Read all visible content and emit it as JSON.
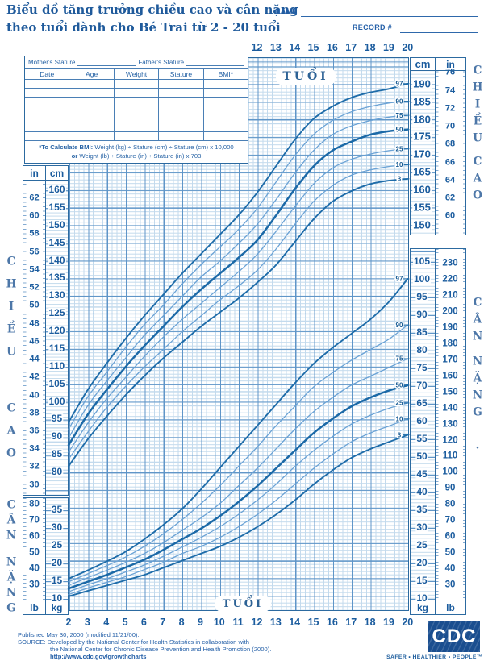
{
  "header": {
    "title_line1": "Biểu đồ tăng trưởng chiều cao và cân nặng",
    "title_line2": "theo tuổi dành cho Bé Trai từ 2 - 20 tuổi",
    "name_label": "NAME",
    "record_label": "RECORD #"
  },
  "table": {
    "mother_label": "Mother's Stature",
    "father_label": "Father's Stature",
    "columns": [
      "Date",
      "Age",
      "Weight",
      "Stature",
      "BMI*"
    ],
    "empty_rows": 7,
    "bmi_note1_bold": "*To Calculate BMI:",
    "bmi_note1_rest": " Weight (kg) ÷ Stature (cm) ÷ Stature (cm) x 10,000",
    "bmi_note2_bold": "or",
    "bmi_note2_rest": " Weight (lb) ÷ Stature (in) ÷ Stature (in) x 703"
  },
  "units": {
    "in": "in",
    "cm": "cm",
    "lb": "lb",
    "kg": "kg"
  },
  "chart_labels": {
    "age_axis_title_top": "TUỔI",
    "age_axis_title_bottom": "TUỔI",
    "stature_left": "CHIỀU CAO",
    "stature_right": "CHIỀU CAO",
    "weight_left": "CÂN NẶNG",
    "weight_right": "CÂN NẶNG",
    "weight_right_period": "."
  },
  "footer": {
    "published": "Published May 30, 2000 (modified 11/21/00).",
    "source_line1": "SOURCE: Developed by the National Center for Health Statistics in collaboration with",
    "source_line2": "the National Center for Chronic Disease Prevention and Health Promotion (2000).",
    "url": "http://www.cdc.gov/growthcharts",
    "cdc_logo": "CDC",
    "tagline": "SAFER • HEALTHIER • PEOPLE™"
  },
  "chart_data": {
    "type": "line",
    "title": "Biểu đồ tăng trưởng chiều cao và cân nặng theo tuổi dành cho Bé Trai từ 2 - 20 tuổi",
    "xlabel": "TUỔI (age, years)",
    "ylabel_stature": "CHIỀU CAO (stature, cm / in)",
    "ylabel_weight": "CÂN NẶNG (weight, kg / lb)",
    "x_range": [
      2,
      20
    ],
    "stature_cm_range": [
      80,
      190
    ],
    "weight_kg_range": [
      10,
      105
    ],
    "percentiles": [
      "97",
      "90",
      "75",
      "50",
      "25",
      "10",
      "3"
    ],
    "ages": [
      2,
      3,
      4,
      5,
      6,
      7,
      8,
      9,
      10,
      11,
      12,
      13,
      14,
      15,
      16,
      17,
      18,
      19,
      20
    ],
    "stature_cm": {
      "series": [
        {
          "name": "97",
          "values": [
            94,
            103,
            110.5,
            117.5,
            124,
            130,
            136,
            141.5,
            147,
            152.5,
            159,
            166.5,
            174,
            180,
            183.5,
            186,
            187.5,
            188.5,
            190
          ]
        },
        {
          "name": "90",
          "values": [
            92,
            101,
            108,
            115,
            121.5,
            127,
            133,
            138.5,
            143.5,
            148.5,
            154.5,
            162,
            169.5,
            175.5,
            179.5,
            182,
            183.5,
            184.5,
            185
          ]
        },
        {
          "name": "75",
          "values": [
            89.5,
            98.5,
            105.5,
            112,
            118.5,
            124,
            129.5,
            135,
            139.5,
            144.5,
            150,
            157,
            164.5,
            171,
            175.5,
            178,
            179.5,
            180.5,
            181
          ]
        },
        {
          "name": "50",
          "values": [
            87.5,
            96,
            103,
            109.5,
            115.5,
            121,
            126.5,
            131.5,
            136,
            140.5,
            145.5,
            152.5,
            160,
            166.5,
            171,
            173.5,
            175.5,
            176.5,
            177
          ]
        },
        {
          "name": "25",
          "values": [
            85.5,
            93.5,
            100.5,
            106.5,
            112.5,
            118,
            123,
            127.5,
            132,
            136.5,
            141.5,
            148,
            155,
            161.5,
            166,
            168.5,
            170,
            171,
            171.5
          ]
        },
        {
          "name": "10",
          "values": [
            83.5,
            91,
            98,
            104,
            109.5,
            114.5,
            119.5,
            124,
            128.5,
            132.5,
            137,
            143,
            150,
            156.5,
            161,
            164,
            165.5,
            166.5,
            167
          ]
        },
        {
          "name": "3",
          "values": [
            81.5,
            89,
            95.5,
            101.5,
            107,
            112,
            116.5,
            121,
            125,
            129,
            133.5,
            138.5,
            145,
            151.5,
            156.5,
            159.5,
            161.5,
            162.5,
            163
          ]
        }
      ]
    },
    "weight_kg": {
      "series": [
        {
          "name": "97",
          "values": [
            15.5,
            17.8,
            20.3,
            23,
            26.5,
            30.5,
            35,
            40.5,
            46.5,
            52.5,
            58.5,
            64.5,
            70.5,
            76,
            80.5,
            84.5,
            88.5,
            93.5,
            100
          ]
        },
        {
          "name": "90",
          "values": [
            14.6,
            16.8,
            19.1,
            21.5,
            24.5,
            28,
            32,
            36.5,
            41.5,
            47,
            52.5,
            58.5,
            64,
            69.5,
            73.5,
            77,
            80,
            83,
            87
          ]
        },
        {
          "name": "75",
          "values": [
            13.6,
            15.7,
            17.8,
            20,
            22.5,
            25.5,
            29,
            32.5,
            36.5,
            41.5,
            46.5,
            52,
            57.5,
            62.5,
            66.5,
            70,
            72.5,
            75,
            77.5
          ]
        },
        {
          "name": "50",
          "values": [
            12.7,
            14.6,
            16.5,
            18.6,
            20.8,
            23.5,
            26.5,
            29.5,
            33,
            37,
            41.5,
            46.5,
            51.5,
            56.5,
            60.5,
            64,
            66.5,
            68.5,
            70
          ]
        },
        {
          "name": "25",
          "values": [
            11.8,
            13.7,
            15.4,
            17.3,
            19.3,
            21.7,
            24.3,
            27,
            30,
            33.5,
            37.5,
            42,
            47,
            51.5,
            55.5,
            59,
            61.5,
            63.5,
            65
          ]
        },
        {
          "name": "10",
          "values": [
            11,
            12.8,
            14.4,
            16,
            18,
            20,
            22.5,
            24.5,
            27,
            30,
            33.5,
            37.5,
            42,
            46.5,
            50.5,
            54,
            56.5,
            58.5,
            60.5
          ]
        },
        {
          "name": "3",
          "values": [
            10.5,
            12,
            13.5,
            15,
            16.5,
            18.5,
            20.5,
            22.5,
            24.5,
            27,
            30,
            33.5,
            37.5,
            42,
            46,
            49.5,
            52,
            54,
            56
          ]
        }
      ]
    },
    "axes": {
      "age_top": [
        12,
        13,
        14,
        15,
        16,
        17,
        18,
        19,
        20
      ],
      "age_bottom": [
        2,
        3,
        4,
        5,
        6,
        7,
        8,
        9,
        10,
        11,
        12,
        13,
        14,
        15,
        16,
        17,
        18,
        19,
        20
      ],
      "stature_left_in": [
        62,
        60,
        58,
        56,
        54,
        52,
        50,
        48,
        46,
        44,
        42,
        40,
        38,
        36,
        34,
        32,
        30
      ],
      "stature_left_cm": [
        160,
        155,
        150,
        145,
        140,
        135,
        130,
        125,
        120,
        115,
        110,
        105,
        100,
        95,
        90,
        85,
        80
      ],
      "stature_right_cm": [
        190,
        185,
        180,
        175,
        170,
        165,
        160,
        155,
        150
      ],
      "stature_right_in": [
        76,
        74,
        72,
        70,
        68,
        66,
        64,
        62,
        60
      ],
      "weight_left_lb": [
        80,
        70,
        60,
        50,
        40,
        30
      ],
      "weight_left_kg": [
        35,
        30,
        25,
        20,
        15,
        10
      ],
      "weight_right_kg": [
        105,
        100,
        95,
        90,
        85,
        80,
        75,
        70,
        65,
        60,
        55,
        50,
        45,
        40,
        35,
        30,
        25,
        20,
        15,
        10
      ],
      "weight_right_lb": [
        230,
        220,
        210,
        200,
        190,
        180,
        170,
        160,
        150,
        140,
        130,
        120,
        110,
        100,
        90,
        80,
        70,
        60,
        50,
        40,
        30
      ]
    },
    "legend_position": "curve-end-labels-right",
    "grid": true
  }
}
